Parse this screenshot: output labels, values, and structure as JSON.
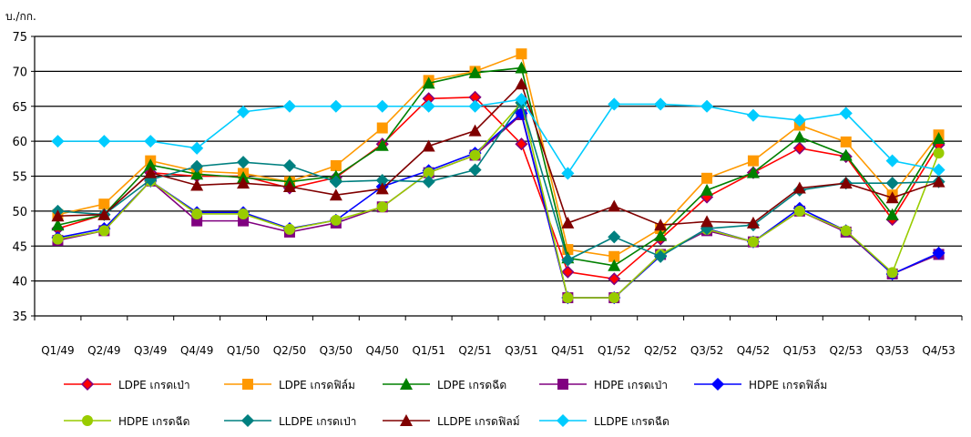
{
  "chart_data": {
    "type": "line",
    "ylabel": "บ./กก.",
    "ylim": [
      35,
      75
    ],
    "yticks": [
      35,
      40,
      45,
      50,
      55,
      60,
      65,
      70,
      75
    ],
    "grid": true,
    "legend_position": "bottom",
    "x": [
      "Q1/49",
      "Q2/49",
      "Q3/49",
      "Q4/49",
      "Q1/50",
      "Q2/50",
      "Q3/50",
      "Q4/50",
      "Q1/51",
      "Q2/51",
      "Q3/51",
      "Q4/51",
      "Q1/52",
      "Q2/52",
      "Q3/52",
      "Q4/52",
      "Q1/53",
      "Q2/53",
      "Q3/53",
      "Q4/53"
    ],
    "series": [
      {
        "name": "LDPE เกรดเป่า",
        "color": "#FF0000",
        "marker": "diamond-red-fill",
        "values": [
          47.5,
          49.5,
          55.5,
          55.0,
          55.0,
          53.3,
          54.8,
          59.6,
          66.1,
          66.3,
          59.6,
          41.3,
          40.3,
          46.0,
          52.0,
          55.5,
          59.0,
          57.8,
          48.8,
          59.5
        ]
      },
      {
        "name": "LDPE เกรดฟิล์ม",
        "color": "#FF9900",
        "marker": "square-orange",
        "values": [
          49.5,
          51.0,
          57.2,
          55.7,
          55.4,
          54.2,
          56.5,
          61.9,
          68.7,
          70.0,
          72.5,
          44.5,
          43.5,
          47.5,
          54.7,
          57.2,
          62.3,
          59.9,
          52.3,
          60.9
        ]
      },
      {
        "name": "LDPE เกรดฉีด",
        "color": "#008000",
        "marker": "triangle-green",
        "values": [
          48.0,
          49.5,
          56.6,
          55.3,
          54.8,
          54.2,
          55.0,
          59.4,
          68.3,
          69.8,
          70.5,
          43.3,
          42.2,
          46.5,
          53.0,
          55.5,
          60.6,
          58.0,
          49.5,
          60.4
        ]
      },
      {
        "name": "HDPE เกรดเป่า",
        "color": "#800080",
        "marker": "square-purple",
        "values": [
          45.8,
          47.2,
          54.3,
          48.6,
          48.6,
          47.0,
          48.3,
          50.6,
          55.5,
          58.0,
          63.8,
          37.6,
          37.6,
          43.8,
          47.2,
          45.6,
          50.0,
          47.0,
          41.0,
          43.8
        ]
      },
      {
        "name": "HDPE เกรดฟิล์ม",
        "color": "#0000FF",
        "marker": "diamond-blue",
        "values": [
          46.2,
          47.5,
          54.3,
          49.8,
          49.8,
          47.5,
          48.7,
          53.5,
          55.8,
          58.3,
          64.0,
          37.6,
          37.6,
          43.6,
          47.5,
          45.6,
          50.4,
          47.2,
          41.0,
          44.0
        ]
      },
      {
        "name": "HDPE เกรดฉีด",
        "color": "#99CC00",
        "marker": "circle-yellowgreen",
        "values": [
          46.0,
          47.2,
          54.3,
          49.6,
          49.6,
          47.4,
          48.7,
          50.6,
          55.5,
          58.0,
          65.5,
          37.6,
          37.6,
          43.8,
          47.4,
          45.6,
          50.0,
          47.2,
          41.2,
          58.3
        ]
      },
      {
        "name": "LLDPE เกรดเป่า",
        "color": "#008080",
        "marker": "diamond-teal",
        "values": [
          50.0,
          49.5,
          54.5,
          56.4,
          57.0,
          56.5,
          54.2,
          54.4,
          54.2,
          55.9,
          65.5,
          43.0,
          46.3,
          43.5,
          47.5,
          48.0,
          53.0,
          54.0,
          54.0,
          54.2
        ]
      },
      {
        "name": "LLDPE เกรดฟิลม์",
        "color": "#800000",
        "marker": "triangle-darkred",
        "values": [
          49.3,
          49.5,
          55.5,
          53.7,
          54.0,
          53.5,
          52.3,
          53.2,
          59.3,
          61.5,
          68.2,
          48.3,
          50.7,
          48.0,
          48.5,
          48.3,
          53.3,
          54.0,
          51.9,
          54.2
        ]
      },
      {
        "name": "LLDPE เกรดฉีด",
        "color": "#00CCFF",
        "marker": "diamond-cyan",
        "values": [
          60.0,
          60.0,
          60.0,
          59.0,
          64.2,
          65.0,
          65.0,
          65.0,
          65.0,
          65.0,
          66.0,
          55.4,
          65.3,
          65.3,
          65.0,
          63.7,
          63.0,
          64.0,
          57.2,
          55.9
        ]
      }
    ]
  }
}
